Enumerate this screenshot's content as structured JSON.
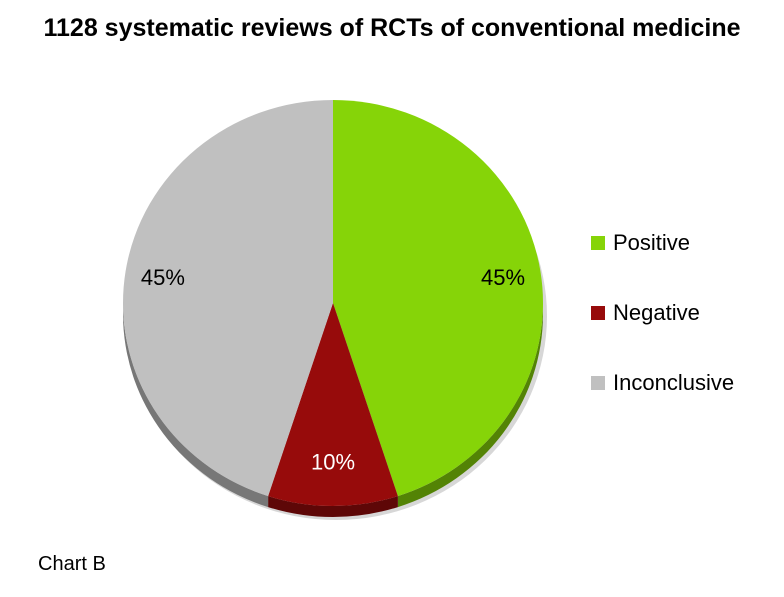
{
  "chart_data": {
    "type": "pie",
    "title": "1128 systematic reviews of RCTs of conventional medicine",
    "categories": [
      "Positive",
      "Negative",
      "Inconclusive"
    ],
    "values": [
      45,
      10,
      45
    ],
    "labels": [
      "45%",
      "10%",
      "45%"
    ],
    "colors": [
      "#86d408",
      "#970b0b",
      "#c0c0c0"
    ],
    "label_colors": [
      "#000000",
      "#ffffff",
      "#000000"
    ],
    "legend_position": "right"
  },
  "footnote": "Chart B"
}
